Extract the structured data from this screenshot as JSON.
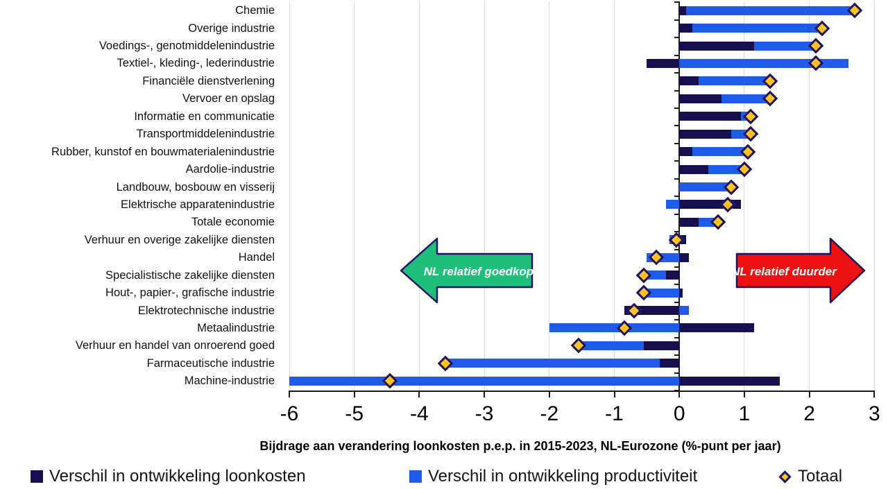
{
  "chart_data": {
    "type": "bar",
    "orientation": "horizontal",
    "stacked": true,
    "title": "",
    "xlabel": "Bijdrage aan verandering loonkosten p.e.p. in 2015-2023, NL-Eurozone (%-punt per jaar)",
    "xlim": [
      -6,
      3
    ],
    "x_ticks": [
      -6,
      -5,
      -4,
      -3,
      -2,
      -1,
      0,
      1,
      2,
      3
    ],
    "grid": "vertical-light-gray",
    "legend_position": "bottom",
    "categories": [
      "Chemie",
      "Overige industrie",
      "Voedings-, genotmiddelenindustrie",
      "Textiel-, kleding-, lederindustrie",
      "Financiële dienstverlening",
      "Vervoer en opslag",
      "Informatie en communicatie",
      "Transportmiddelenindustrie",
      "Rubber, kunstof en bouwmaterialenindustrie",
      "Aardolie-industrie",
      "Landbouw, bosbouw en visserij",
      "Elektrische apparatenindustrie",
      "Totale economie",
      "Verhuur en overige zakelijke diensten",
      "Handel",
      "Specialistische zakelijke diensten",
      "Hout-, papier-, grafische industrie",
      "Elektrotechnische industrie",
      "Metaalindustrie",
      "Verhuur en handel van onroerend goed",
      "Farmaceutische industrie",
      "Machine-industrie"
    ],
    "series": [
      {
        "name": "Verschil in ontwikkeling loonkosten",
        "style": "bar",
        "color": "#161050",
        "values": [
          0.1,
          0.2,
          1.15,
          -0.5,
          0.3,
          0.65,
          0.95,
          0.8,
          0.2,
          0.45,
          0.0,
          0.95,
          0.3,
          0.1,
          0.15,
          -0.2,
          0.05,
          -0.85,
          1.15,
          -0.55,
          -0.3,
          1.55
        ]
      },
      {
        "name": "Verschil in ontwikkeling productiviteit",
        "style": "bar",
        "color": "#1e5beb",
        "values": [
          2.6,
          2.0,
          0.95,
          2.6,
          1.1,
          0.75,
          0.15,
          0.3,
          0.85,
          0.55,
          0.8,
          -0.2,
          0.3,
          -0.15,
          -0.5,
          -0.35,
          -0.6,
          0.15,
          -2.0,
          -1.0,
          -3.3,
          -6.0
        ]
      },
      {
        "name": "Totaal",
        "style": "diamond-marker",
        "color": "#ffc21e",
        "marker_border_color": "#1b1464",
        "values": [
          2.7,
          2.2,
          2.1,
          2.1,
          1.4,
          1.4,
          1.1,
          1.1,
          1.05,
          1.0,
          0.8,
          0.75,
          0.6,
          -0.05,
          -0.35,
          -0.55,
          -0.55,
          -0.7,
          -0.85,
          -1.55,
          -3.6,
          -4.45
        ]
      }
    ]
  },
  "annotations": {
    "left_arrow": {
      "text": "NL relatief goedkoper",
      "fill": "#1ebe7b",
      "border": "#1b1464",
      "text_color": "#ffffff",
      "direction": "left"
    },
    "right_arrow": {
      "text": "NL relatief duurder",
      "fill": "#ee1111",
      "border": "#1b1464",
      "text_color": "#ffffff",
      "direction": "right"
    }
  },
  "legend": {
    "items": [
      {
        "swatch": "square",
        "color": "#161050",
        "label": "Verschil in ontwikkeling loonkosten"
      },
      {
        "swatch": "square",
        "color": "#1e5beb",
        "label": "Verschil in ontwikkeling productiviteit"
      },
      {
        "swatch": "diamond",
        "color": "#ffc21e",
        "label": "Totaal"
      }
    ]
  },
  "colors": {
    "grid": "#d9d9d9",
    "axis": "#1a1a1a",
    "background": "#ffffff"
  }
}
